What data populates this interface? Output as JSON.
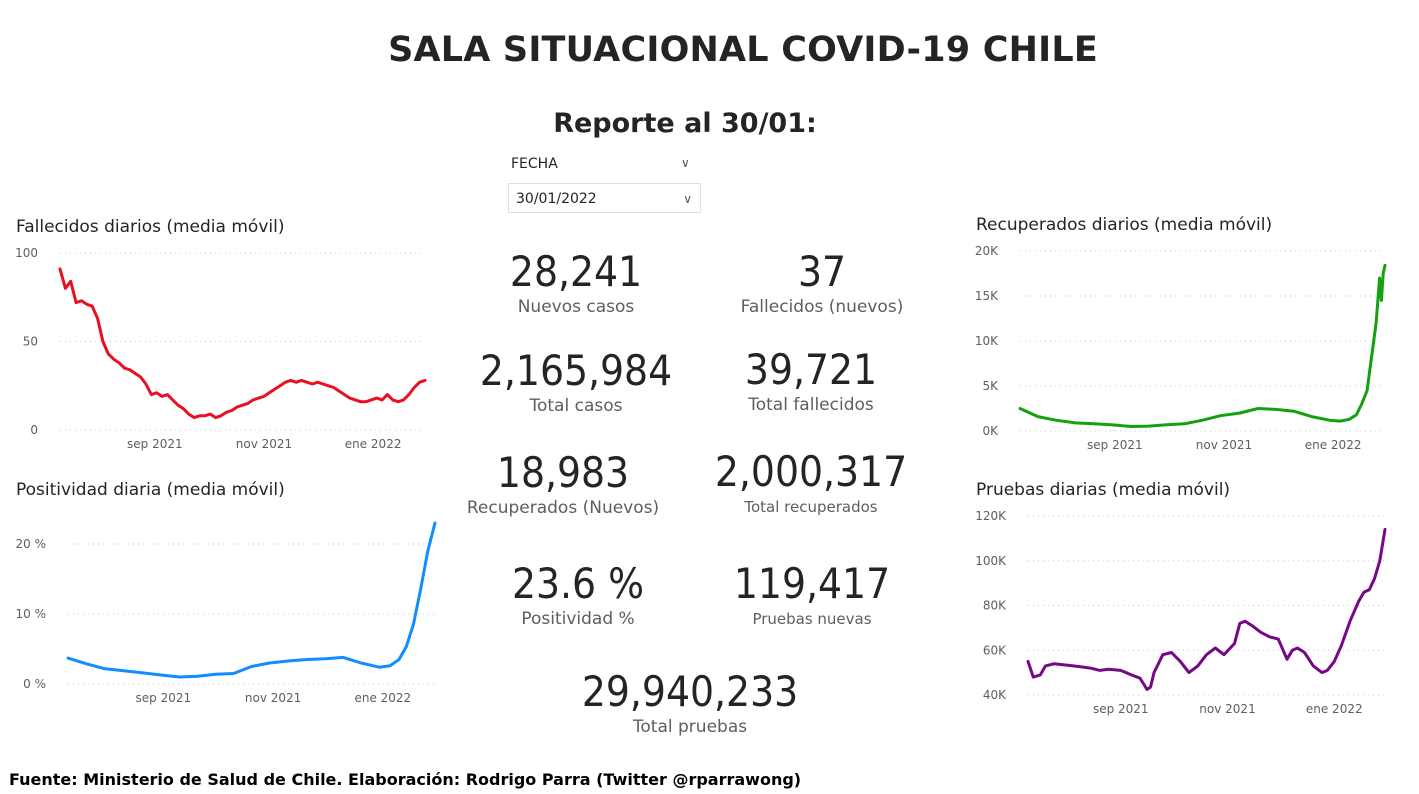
{
  "header": {
    "title": "SALA SITUACIONAL COVID-19 CHILE",
    "subtitle": "Reporte al 30/01:"
  },
  "slicer": {
    "label": "FECHA",
    "value": "30/01/2022"
  },
  "kpis": [
    {
      "value": "28,241",
      "label": "Nuevos casos"
    },
    {
      "value": "37",
      "label": "Fallecidos (nuevos)"
    },
    {
      "value": "2,165,984",
      "label": "Total casos"
    },
    {
      "value": "39,721",
      "label": "Total fallecidos"
    },
    {
      "value": "18,983",
      "label": "Recuperados (Nuevos)"
    },
    {
      "value": "2,000,317",
      "label": "Total recuperados"
    },
    {
      "value": "23.6 %",
      "label": "Positividad %"
    },
    {
      "value": "119,417",
      "label": "Pruebas nuevas"
    },
    {
      "value": "29,940,233",
      "label": "Total pruebas"
    }
  ],
  "footer": "Fuente: Ministerio de Salud de Chile. Elaboración: Rodrigo Parra (Twitter @rparrawong)",
  "chart_data": [
    {
      "id": "fallecidos",
      "type": "line",
      "title": "Fallecidos diarios (media móvil)",
      "color": "#e81123",
      "x": [
        "2021-07-10",
        "2021-07-13",
        "2021-07-16",
        "2021-07-19",
        "2021-07-22",
        "2021-07-25",
        "2021-07-28",
        "2021-07-31",
        "2021-08-03",
        "2021-08-06",
        "2021-08-09",
        "2021-08-12",
        "2021-08-15",
        "2021-08-18",
        "2021-08-21",
        "2021-08-24",
        "2021-08-27",
        "2021-08-30",
        "2021-09-02",
        "2021-09-05",
        "2021-09-08",
        "2021-09-11",
        "2021-09-14",
        "2021-09-17",
        "2021-09-20",
        "2021-09-23",
        "2021-09-26",
        "2021-09-29",
        "2021-10-02",
        "2021-10-05",
        "2021-10-08",
        "2021-10-11",
        "2021-10-14",
        "2021-10-17",
        "2021-10-20",
        "2021-10-23",
        "2021-10-26",
        "2021-10-29",
        "2021-11-01",
        "2021-11-04",
        "2021-11-07",
        "2021-11-10",
        "2021-11-13",
        "2021-11-16",
        "2021-11-19",
        "2021-11-22",
        "2021-11-25",
        "2021-11-28",
        "2021-12-01",
        "2021-12-04",
        "2021-12-07",
        "2021-12-10",
        "2021-12-13",
        "2021-12-16",
        "2021-12-19",
        "2021-12-22",
        "2021-12-25",
        "2021-12-28",
        "2021-12-31",
        "2022-01-03",
        "2022-01-06",
        "2022-01-09",
        "2022-01-12",
        "2022-01-15",
        "2022-01-18",
        "2022-01-21",
        "2022-01-24",
        "2022-01-27",
        "2022-01-30"
      ],
      "y": [
        91,
        80,
        84,
        72,
        73,
        71,
        70,
        63,
        50,
        43,
        40,
        38,
        35,
        34,
        32,
        30,
        26,
        20,
        21,
        19,
        20,
        17,
        14,
        12,
        9,
        7,
        8,
        8,
        9,
        7,
        8,
        10,
        11,
        13,
        14,
        15,
        17,
        18,
        19,
        21,
        23,
        25,
        27,
        28,
        27,
        28,
        27,
        26,
        27,
        26,
        25,
        24,
        22,
        20,
        18,
        17,
        16,
        16,
        17,
        18,
        17,
        20,
        17,
        16,
        17,
        20,
        24,
        27,
        28
      ],
      "yticks": [
        0,
        50,
        100
      ],
      "ytick_labels": [
        "0",
        "50",
        "100"
      ],
      "ymax": 100,
      "xticks": [
        {
          "date": "2021-09-01",
          "label": "sep 2021"
        },
        {
          "date": "2021-11-01",
          "label": "nov 2021"
        },
        {
          "date": "2022-01-01",
          "label": "ene 2022"
        }
      ]
    },
    {
      "id": "recuperados",
      "type": "line",
      "title": "Recuperados diarios (media móvil)",
      "color": "#13a10e",
      "x": [
        "2021-07-10",
        "2021-07-20",
        "2021-07-30",
        "2021-08-10",
        "2021-08-20",
        "2021-08-30",
        "2021-09-10",
        "2021-09-20",
        "2021-09-30",
        "2021-10-10",
        "2021-10-20",
        "2021-10-30",
        "2021-11-10",
        "2021-11-20",
        "2021-11-30",
        "2021-12-10",
        "2021-12-20",
        "2021-12-30",
        "2022-01-05",
        "2022-01-10",
        "2022-01-14",
        "2022-01-17",
        "2022-01-20",
        "2022-01-23",
        "2022-01-25",
        "2022-01-27",
        "2022-01-28",
        "2022-01-29",
        "2022-01-30"
      ],
      "y": [
        2500,
        1600,
        1200,
        900,
        800,
        700,
        500,
        550,
        700,
        800,
        1200,
        1700,
        2000,
        2500,
        2400,
        2200,
        1600,
        1200,
        1100,
        1300,
        1800,
        3000,
        4500,
        9000,
        12000,
        17000,
        14500,
        17500,
        18400
      ],
      "yticks": [
        0,
        5000,
        10000,
        15000,
        20000
      ],
      "ytick_labels": [
        "0K",
        "5K",
        "10K",
        "15K",
        "20K"
      ],
      "ymax": 20000,
      "xticks": [
        {
          "date": "2021-09-01",
          "label": "sep 2021"
        },
        {
          "date": "2021-11-01",
          "label": "nov 2021"
        },
        {
          "date": "2022-01-01",
          "label": "ene 2022"
        }
      ]
    },
    {
      "id": "positividad",
      "type": "line",
      "title": "Positividad diaria (media móvil)",
      "color": "#118dff",
      "x": [
        "2021-07-10",
        "2021-07-20",
        "2021-07-30",
        "2021-08-10",
        "2021-08-20",
        "2021-08-30",
        "2021-09-10",
        "2021-09-20",
        "2021-09-30",
        "2021-10-10",
        "2021-10-20",
        "2021-10-30",
        "2021-11-10",
        "2021-11-20",
        "2021-11-30",
        "2021-12-10",
        "2021-12-20",
        "2021-12-30",
        "2022-01-05",
        "2022-01-10",
        "2022-01-14",
        "2022-01-18",
        "2022-01-22",
        "2022-01-26",
        "2022-01-30"
      ],
      "y": [
        3.7,
        2.9,
        2.2,
        1.9,
        1.6,
        1.3,
        1.0,
        1.1,
        1.4,
        1.5,
        2.5,
        3.0,
        3.3,
        3.5,
        3.6,
        3.8,
        3.0,
        2.4,
        2.6,
        3.5,
        5.3,
        8.5,
        13.5,
        19.0,
        23.0
      ],
      "yticks": [
        0,
        10,
        20
      ],
      "ytick_labels": [
        "0 %",
        "10 %",
        "20 %"
      ],
      "ymax": 23,
      "xticks": [
        {
          "date": "2021-09-01",
          "label": "sep 2021"
        },
        {
          "date": "2021-11-01",
          "label": "nov 2021"
        },
        {
          "date": "2022-01-01",
          "label": "ene 2022"
        }
      ]
    },
    {
      "id": "pruebas",
      "type": "line",
      "title": "Pruebas diarias (media móvil)",
      "color": "#750985",
      "x": [
        "2021-07-10",
        "2021-07-13",
        "2021-07-17",
        "2021-07-20",
        "2021-07-25",
        "2021-07-30",
        "2021-08-05",
        "2021-08-10",
        "2021-08-15",
        "2021-08-20",
        "2021-08-25",
        "2021-09-01",
        "2021-09-07",
        "2021-09-12",
        "2021-09-16",
        "2021-09-18",
        "2021-09-20",
        "2021-09-25",
        "2021-09-30",
        "2021-10-05",
        "2021-10-10",
        "2021-10-15",
        "2021-10-20",
        "2021-10-25",
        "2021-10-30",
        "2021-11-05",
        "2021-11-08",
        "2021-11-11",
        "2021-11-15",
        "2021-11-20",
        "2021-11-25",
        "2021-11-30",
        "2021-12-05",
        "2021-12-08",
        "2021-12-11",
        "2021-12-15",
        "2021-12-20",
        "2021-12-25",
        "2021-12-28",
        "2022-01-01",
        "2022-01-05",
        "2022-01-10",
        "2022-01-15",
        "2022-01-18",
        "2022-01-21",
        "2022-01-24",
        "2022-01-27",
        "2022-01-30"
      ],
      "y": [
        55000,
        48000,
        49000,
        53000,
        54000,
        53500,
        53000,
        52500,
        52000,
        51000,
        51500,
        51000,
        49000,
        47500,
        42500,
        43500,
        50000,
        58000,
        59000,
        55000,
        50000,
        53000,
        58000,
        61000,
        58000,
        63000,
        72000,
        73000,
        71000,
        68000,
        66000,
        65000,
        56000,
        60000,
        61000,
        59000,
        53000,
        50000,
        51000,
        55000,
        62000,
        73000,
        82000,
        86000,
        87000,
        92000,
        100000,
        114000
      ],
      "yticks": [
        40000,
        60000,
        80000,
        100000,
        120000
      ],
      "ytick_labels": [
        "40K",
        "60K",
        "80K",
        "100K",
        "120K"
      ],
      "ymin": 40000,
      "ymax": 120000,
      "xticks": [
        {
          "date": "2021-09-01",
          "label": "sep 2021"
        },
        {
          "date": "2021-11-01",
          "label": "nov 2021"
        },
        {
          "date": "2022-01-01",
          "label": "ene 2022"
        }
      ]
    }
  ]
}
